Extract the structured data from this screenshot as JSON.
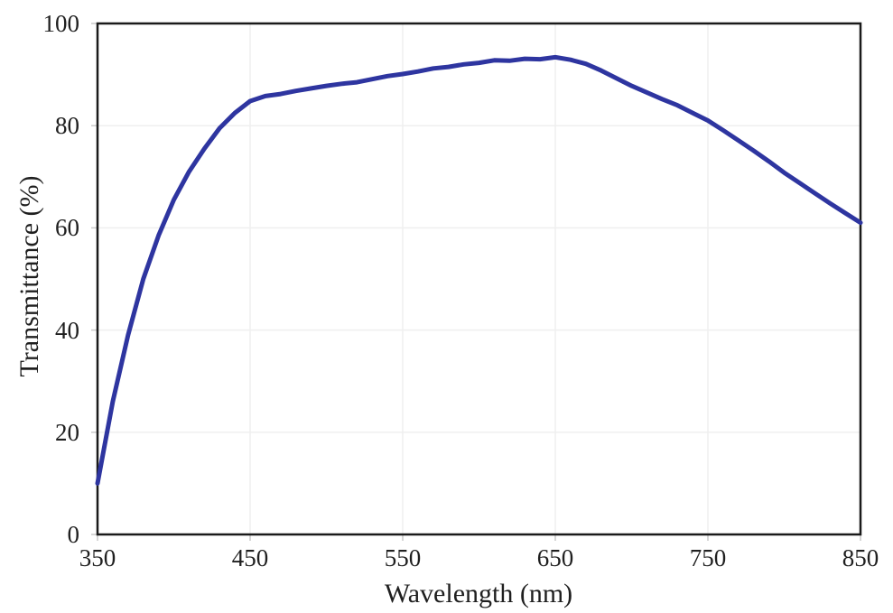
{
  "chart_data": {
    "type": "line",
    "title": "",
    "xlabel": "Wavelength (nm)",
    "ylabel": "Transmittance (%)",
    "x_range": [
      350,
      850
    ],
    "y_range": [
      0,
      100
    ],
    "x_ticks": [
      350,
      450,
      550,
      650,
      750,
      850
    ],
    "y_ticks": [
      0,
      20,
      40,
      60,
      80,
      100
    ],
    "grid": "faint gray gridlines at every tick, full plot box border",
    "legend": "none",
    "colors": {
      "line": "#2e35a0",
      "axis_border": "#1a1a1a",
      "gridline": "#efefef",
      "tick_mark": "#c9c9c9"
    },
    "series": [
      {
        "name": "Transmittance",
        "color": "#2e35a0",
        "x": [
          350,
          360,
          370,
          380,
          390,
          400,
          410,
          420,
          430,
          440,
          450,
          460,
          470,
          480,
          490,
          500,
          510,
          520,
          530,
          540,
          550,
          560,
          570,
          580,
          590,
          600,
          610,
          620,
          630,
          640,
          650,
          660,
          670,
          680,
          690,
          700,
          710,
          720,
          730,
          740,
          750,
          760,
          770,
          780,
          790,
          800,
          810,
          820,
          830,
          840,
          850
        ],
        "y": [
          10,
          26,
          39,
          50,
          58.5,
          65.5,
          71,
          75.5,
          79.5,
          82.5,
          84.8,
          85.8,
          86.2,
          86.8,
          87.3,
          87.8,
          88.2,
          88.5,
          89.1,
          89.7,
          90.1,
          90.6,
          91.2,
          91.5,
          92.0,
          92.3,
          92.8,
          92.7,
          93.1,
          93.0,
          93.4,
          92.9,
          92.1,
          90.8,
          89.3,
          87.8,
          86.5,
          85.2,
          84.0,
          82.5,
          81.0,
          79.1,
          77.1,
          75.1,
          73.0,
          70.8,
          68.8,
          66.8,
          64.8,
          62.9,
          61.0
        ]
      }
    ]
  }
}
